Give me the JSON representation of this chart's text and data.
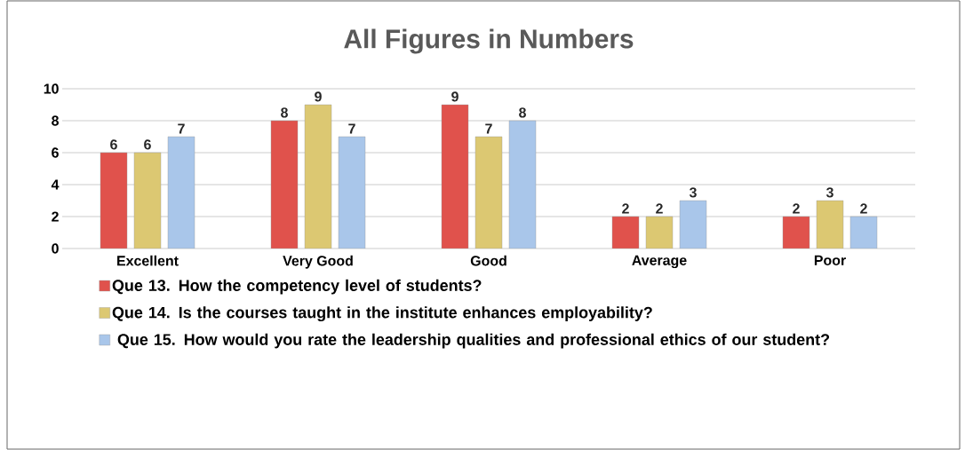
{
  "chart_data": {
    "type": "bar",
    "title": "All Figures in Numbers",
    "categories": [
      "Excellent",
      "Very Good",
      "Good",
      "Average",
      "Poor"
    ],
    "series": [
      {
        "name": "Que 13. How the competency level of students?",
        "color": "#e0524c",
        "values": [
          6,
          8,
          9,
          2,
          2
        ]
      },
      {
        "name": "Que 14. Is the courses taught in the institute enhances employability?",
        "color": "#dcc872",
        "values": [
          6,
          9,
          7,
          2,
          3
        ]
      },
      {
        "name": " Que 15. How would you rate the leadership qualities and professional ethics of our student?",
        "color": "#a9c6ea",
        "values": [
          7,
          7,
          8,
          3,
          2
        ]
      }
    ],
    "ylim": [
      0,
      10
    ],
    "yticks": [
      0,
      2,
      4,
      6,
      8,
      10
    ],
    "grid": "y",
    "data_labels": true,
    "legend": "bottom"
  }
}
